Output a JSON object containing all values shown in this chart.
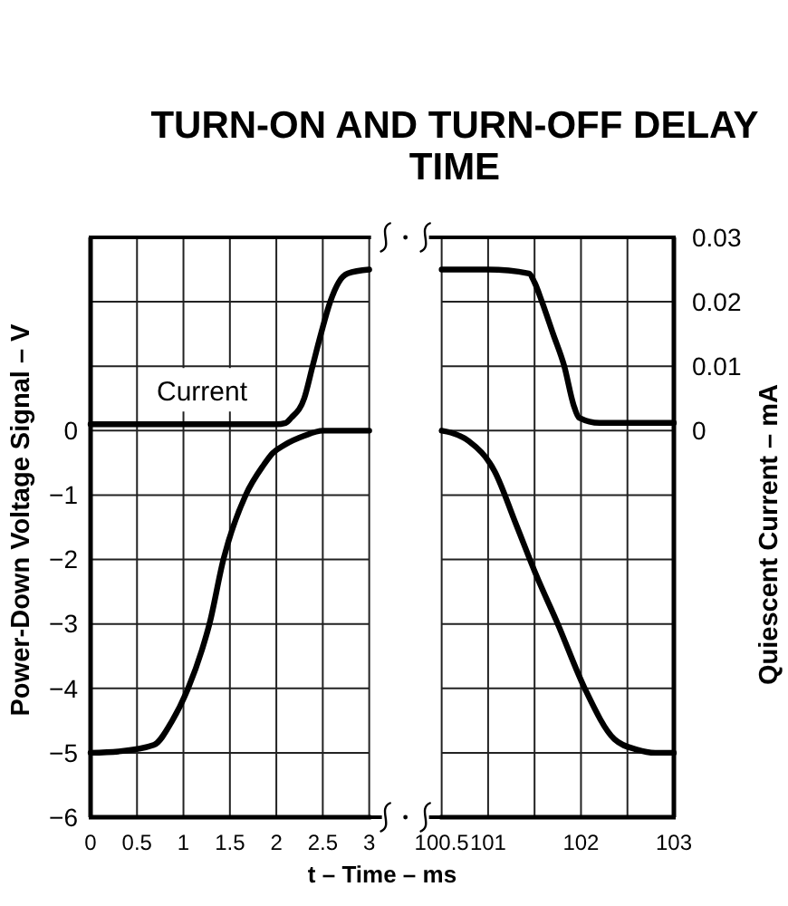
{
  "chart_data": [
    {
      "type": "line",
      "title": "TURN-ON AND TURN-OFF DELAY TIME",
      "xlabel": "t – Time – ms",
      "ylabel": "Power-Down Voltage Signal – V",
      "xlim": [
        0,
        3
      ],
      "xticks": [
        0,
        0.5,
        1,
        1.5,
        2,
        2.5,
        3
      ],
      "ylim": [
        -6,
        3
      ],
      "yticks": [
        -6,
        -5,
        -4,
        -3,
        -2,
        -1,
        0,
        {
          "value": 1,
          "label": null
        },
        {
          "value": 2,
          "label": null
        },
        {
          "value": 3,
          "label": null
        }
      ],
      "y2lim": [
        -0.06,
        0.03
      ],
      "grid": true,
      "line_style": "solid",
      "series": [
        {
          "color": "#000000",
          "x": [
            0,
            0.3,
            0.68,
            0.88,
            1.05,
            1.2,
            1.28,
            1.43,
            1.67,
            1.86,
            1.96,
            2.09,
            2.3,
            2.5,
            3
          ],
          "values": [
            -5,
            -4.98,
            -4.88,
            -4.5,
            -4,
            -3.4,
            -3,
            -2,
            -1,
            -0.54,
            -0.35,
            -0.22,
            -0.08,
            0,
            0
          ]
        },
        {
          "name": "Current",
          "axis": "y2",
          "color": "#000000",
          "x": [
            0,
            1,
            2,
            2.1,
            2.16,
            2.3,
            2.39,
            2.48,
            2.58,
            2.67,
            2.77,
            3
          ],
          "values": [
            0.001,
            0.001,
            0.001,
            0.0012,
            0.002,
            0.005,
            0.01,
            0.015,
            0.02,
            0.023,
            0.0244,
            0.025
          ]
        }
      ]
    },
    {
      "type": "line",
      "y2label": "Quiescent Current – mA",
      "xlim": [
        100.5,
        103
      ],
      "xticks": [
        100.5,
        101,
        {
          "value": 101.5,
          "label": null
        },
        102,
        {
          "value": 102.5,
          "label": null
        },
        103
      ],
      "ylim": [
        -6,
        3
      ],
      "y2lim": [
        -0.06,
        0.03
      ],
      "y2ticks": [
        {
          "value": -0.06,
          "label": null
        },
        {
          "value": -0.05,
          "label": null
        },
        {
          "value": -0.04,
          "label": null
        },
        {
          "value": -0.03,
          "label": null
        },
        {
          "value": -0.02,
          "label": null
        },
        {
          "value": -0.01,
          "label": null
        },
        0,
        0.01,
        0.02,
        0.03
      ],
      "grid": true,
      "line_style": "solid",
      "series": [
        {
          "color": "#000000",
          "x": [
            100.5,
            100.6,
            100.79,
            101.07,
            101.3,
            101.52,
            101.75,
            102.04,
            102.36,
            102.6,
            102.8,
            103
          ],
          "values": [
            0,
            -0.03,
            -0.16,
            -0.63,
            -1.45,
            -2.25,
            -3,
            -4,
            -4.79,
            -4.95,
            -5,
            -5
          ]
        },
        {
          "axis": "y2",
          "color": "#000000",
          "x": [
            100.5,
            101,
            101.44,
            101.5,
            101.58,
            101.7,
            101.82,
            101.92,
            101.98,
            102.2,
            103
          ],
          "values": [
            0.025,
            0.025,
            0.0244,
            0.023,
            0.02,
            0.015,
            0.01,
            0.004,
            0.002,
            0.0012,
            0.0012
          ]
        }
      ]
    }
  ]
}
